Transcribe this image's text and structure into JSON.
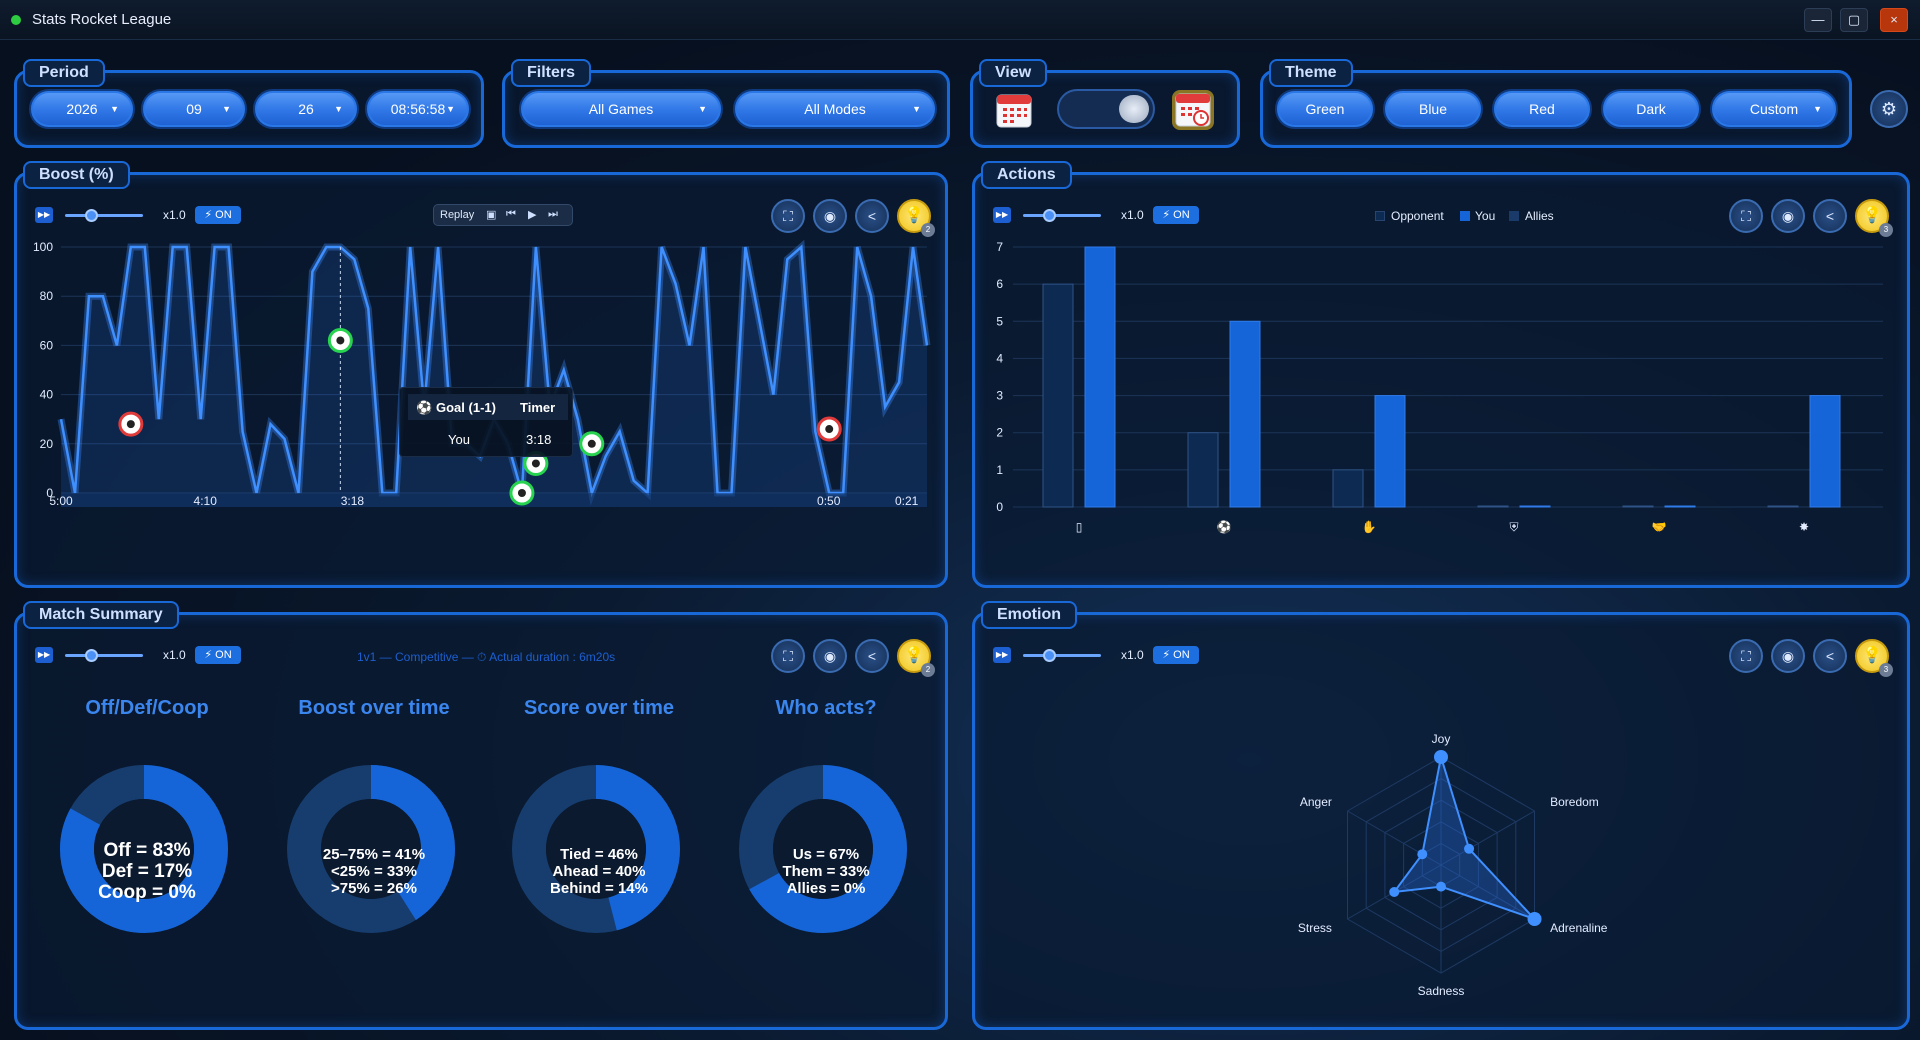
{
  "app": {
    "title": "Stats Rocket League"
  },
  "window_controls": {
    "minimize": "—",
    "maximize": "▢",
    "close": "×"
  },
  "period": {
    "label": "Period",
    "fields": [
      "2026",
      "09",
      "26",
      "08:56:58"
    ]
  },
  "filters": {
    "label": "Filters",
    "games": "All Games",
    "modes": "All Modes"
  },
  "view": {
    "label": "View",
    "toggle_on": true
  },
  "theme": {
    "label": "Theme",
    "options": [
      "Green",
      "Blue",
      "Red",
      "Dark",
      "Custom"
    ]
  },
  "controls": {
    "speed": "x1.0",
    "on": "⚡ ON"
  },
  "boost": {
    "label": "Boost (%)",
    "replay_label": "Replay",
    "bulb_badge": "2",
    "tooltip": {
      "col1": "Goal (1-1)",
      "col2": "Timer",
      "row_name": "You",
      "row_value": "3:18"
    },
    "time_labels": [
      "5:00",
      "4:10",
      "3:18",
      "0:50",
      "0:21"
    ]
  },
  "actions": {
    "label": "Actions",
    "bulb_badge": "3",
    "legend": [
      "Opponent",
      "You",
      "Allies"
    ]
  },
  "summary": {
    "label": "Match Summary",
    "bulb_badge": "2",
    "info": "1v1 — Competitive — ⏱ Actual duration : 6m20s",
    "donuts": [
      {
        "title": "Off/Def/Coop",
        "lines": [
          "Off = 83%",
          "Def = 17%",
          "Coop = 0%"
        ],
        "primary": 83
      },
      {
        "title": "Boost over time",
        "lines": [
          "25–75% = 41%",
          "<25% = 33%",
          ">75% = 26%"
        ],
        "primary": 41
      },
      {
        "title": "Score over time",
        "lines": [
          "Tied = 46%",
          "Ahead = 40%",
          "Behind = 14%"
        ],
        "primary": 46
      },
      {
        "title": "Who acts?",
        "lines": [
          "Us = 67%",
          "Them = 33%",
          "Allies = 0%"
        ],
        "primary": 67
      }
    ]
  },
  "emotion": {
    "label": "Emotion",
    "bulb_badge": "3"
  },
  "colors": {
    "accent": "#1968d8",
    "bar_you": "#1565d8",
    "bar_opponent": "#0d2a52"
  },
  "chart_data": [
    {
      "type": "line",
      "ylabel": "",
      "ylim": [
        0,
        100
      ],
      "yticks": [
        0,
        20,
        40,
        60,
        80,
        100
      ],
      "x_tick_labels": [
        "5:00",
        "4:10",
        "3:18",
        "0:50",
        "0:21"
      ],
      "series": [
        {
          "values": [
            30,
            0,
            80,
            80,
            60,
            100,
            100,
            30,
            100,
            100,
            30,
            100,
            100,
            25,
            0,
            28,
            22,
            0,
            90,
            100,
            100,
            95,
            75,
            0,
            0,
            100,
            35,
            100,
            20,
            20,
            15,
            30,
            20,
            0,
            100,
            35,
            50,
            30,
            0,
            15,
            25,
            5,
            0,
            100,
            85,
            60,
            100,
            0,
            0,
            100,
            70,
            40,
            95,
            100,
            25,
            0,
            0,
            100,
            80,
            35,
            45,
            100,
            60
          ]
        }
      ],
      "markers": [
        {
          "x_index": 5,
          "y": 28,
          "kind": "opponent-goal"
        },
        {
          "x_index": 20,
          "y": 62,
          "kind": "goal"
        },
        {
          "x_index": 33,
          "y": 0,
          "kind": "goal"
        },
        {
          "x_index": 34,
          "y": 12,
          "kind": "goal"
        },
        {
          "x_index": 38,
          "y": 20,
          "kind": "goal"
        },
        {
          "x_index": 55,
          "y": 26,
          "kind": "opponent-goal"
        }
      ]
    },
    {
      "type": "bar",
      "ylim": [
        0,
        7
      ],
      "yticks": [
        0,
        1,
        2,
        3,
        4,
        5,
        6,
        7
      ],
      "categories": [
        "save",
        "goal",
        "demolition",
        "shield",
        "assist",
        "explosion"
      ],
      "series": [
        {
          "name": "Opponent",
          "values": [
            6,
            2,
            1,
            0,
            0,
            0
          ]
        },
        {
          "name": "You",
          "values": [
            7,
            5,
            3,
            0,
            0,
            3
          ]
        },
        {
          "name": "Allies",
          "values": [
            0,
            0,
            0,
            0,
            0,
            0
          ]
        }
      ]
    },
    {
      "type": "radar",
      "axes": [
        "Joy",
        "Boredom",
        "Adrenaline",
        "Sadness",
        "Stress",
        "Anger"
      ],
      "rmax": 5,
      "values": [
        5,
        1.5,
        5,
        1,
        2.5,
        1
      ]
    }
  ]
}
